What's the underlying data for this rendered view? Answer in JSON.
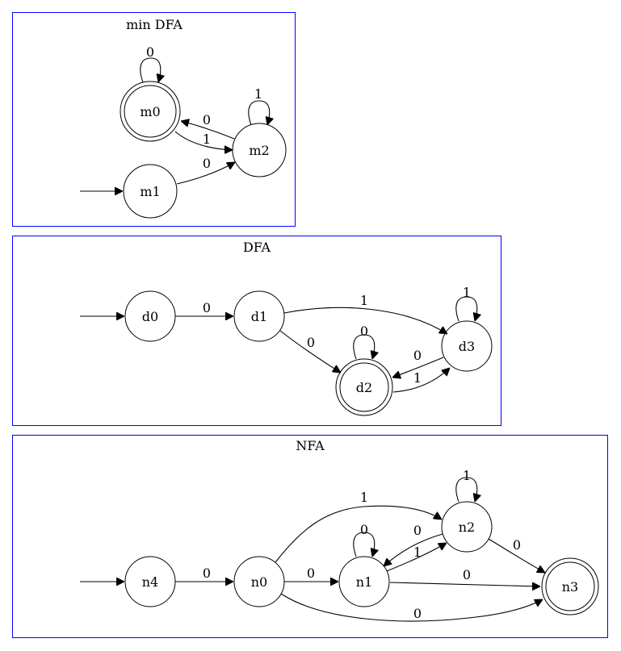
{
  "clusters": {
    "min_dfa": {
      "title": "min DFA",
      "states": {
        "m0": "m0",
        "m1": "m1",
        "m2": "m2"
      },
      "edge_labels": {
        "m0_loop": "0",
        "m0_m2": "1",
        "m2_m0": "0",
        "m2_loop": "1",
        "m1_m2": "0"
      }
    },
    "dfa": {
      "title": "DFA",
      "states": {
        "d0": "d0",
        "d1": "d1",
        "d2": "d2",
        "d3": "d3"
      },
      "edge_labels": {
        "d0_d1": "0",
        "d1_d3": "1",
        "d1_d2": "0",
        "d2_loop": "0",
        "d3_loop": "1",
        "d3_d2": "0",
        "d2_d3": "1"
      }
    },
    "nfa": {
      "title": "NFA",
      "states": {
        "n0": "n0",
        "n1": "n1",
        "n2": "n2",
        "n3": "n3",
        "n4": "n4"
      },
      "edge_labels": {
        "n4_n0": "0",
        "n0_n1": "0",
        "n0_n2": "1",
        "n0_n3": "0",
        "n1_loop": "0",
        "n1_n2": "1",
        "n2_n1": "0",
        "n2_loop": "1",
        "n2_n3": "0",
        "n1_n3": "0"
      }
    }
  }
}
